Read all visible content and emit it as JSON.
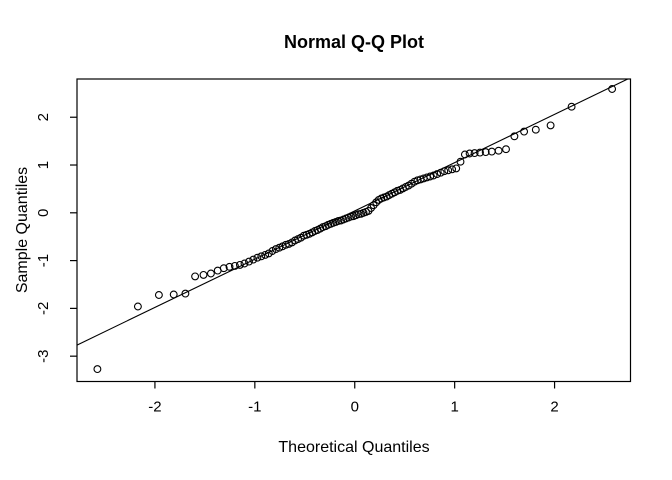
{
  "chart_data": {
    "type": "scatter",
    "title": "Normal Q-Q Plot",
    "xlabel": "Theoretical Quantiles",
    "ylabel": "Sample Quantiles",
    "xlim": [
      -2.78,
      2.76
    ],
    "ylim": [
      -3.53,
      2.8
    ],
    "x_ticks": [
      -2,
      -1,
      0,
      1,
      2
    ],
    "y_ticks": [
      -3,
      -2,
      -1,
      0,
      1,
      2
    ],
    "grid": "off",
    "legend": "none",
    "n_points": 100,
    "marker": "open-circle",
    "color": "#000000",
    "reference_line": {
      "intercept": 0.04,
      "slope": 1.01
    },
    "x": [
      -2.576,
      -2.17,
      -1.96,
      -1.812,
      -1.695,
      -1.598,
      -1.514,
      -1.44,
      -1.372,
      -1.311,
      -1.254,
      -1.2,
      -1.15,
      -1.103,
      -1.058,
      -1.015,
      -0.974,
      -0.935,
      -0.896,
      -0.86,
      -0.824,
      -0.789,
      -0.755,
      -0.722,
      -0.69,
      -0.659,
      -0.628,
      -0.598,
      -0.568,
      -0.539,
      -0.51,
      -0.482,
      -0.454,
      -0.426,
      -0.399,
      -0.372,
      -0.345,
      -0.319,
      -0.292,
      -0.266,
      -0.24,
      -0.215,
      -0.189,
      -0.164,
      -0.138,
      -0.113,
      -0.088,
      -0.063,
      -0.038,
      -0.013,
      0.013,
      0.038,
      0.063,
      0.088,
      0.113,
      0.138,
      0.164,
      0.189,
      0.215,
      0.24,
      0.266,
      0.292,
      0.319,
      0.345,
      0.372,
      0.399,
      0.426,
      0.454,
      0.482,
      0.51,
      0.539,
      0.568,
      0.598,
      0.628,
      0.659,
      0.69,
      0.722,
      0.755,
      0.789,
      0.824,
      0.86,
      0.896,
      0.935,
      0.974,
      1.015,
      1.058,
      1.103,
      1.15,
      1.2,
      1.254,
      1.311,
      1.372,
      1.44,
      1.514,
      1.598,
      1.695,
      1.812,
      1.96,
      2.17,
      2.576
    ],
    "y": [
      -3.27,
      -1.96,
      -1.72,
      -1.71,
      -1.69,
      -1.33,
      -1.3,
      -1.27,
      -1.21,
      -1.16,
      -1.13,
      -1.11,
      -1.09,
      -1.06,
      -1.02,
      -0.98,
      -0.94,
      -0.91,
      -0.88,
      -0.85,
      -0.8,
      -0.76,
      -0.73,
      -0.7,
      -0.67,
      -0.65,
      -0.62,
      -0.58,
      -0.55,
      -0.52,
      -0.48,
      -0.46,
      -0.44,
      -0.41,
      -0.38,
      -0.36,
      -0.33,
      -0.3,
      -0.28,
      -0.25,
      -0.23,
      -0.21,
      -0.19,
      -0.17,
      -0.16,
      -0.14,
      -0.12,
      -0.1,
      -0.08,
      -0.07,
      -0.05,
      -0.03,
      -0.02,
      0.0,
      0.02,
      0.04,
      0.1,
      0.16,
      0.22,
      0.27,
      0.3,
      0.32,
      0.34,
      0.37,
      0.4,
      0.43,
      0.46,
      0.48,
      0.51,
      0.54,
      0.57,
      0.61,
      0.65,
      0.68,
      0.7,
      0.72,
      0.74,
      0.76,
      0.78,
      0.81,
      0.84,
      0.87,
      0.89,
      0.91,
      0.93,
      1.07,
      1.22,
      1.24,
      1.25,
      1.26,
      1.27,
      1.28,
      1.3,
      1.33,
      1.6,
      1.7,
      1.74,
      1.83,
      2.22,
      2.59
    ]
  }
}
